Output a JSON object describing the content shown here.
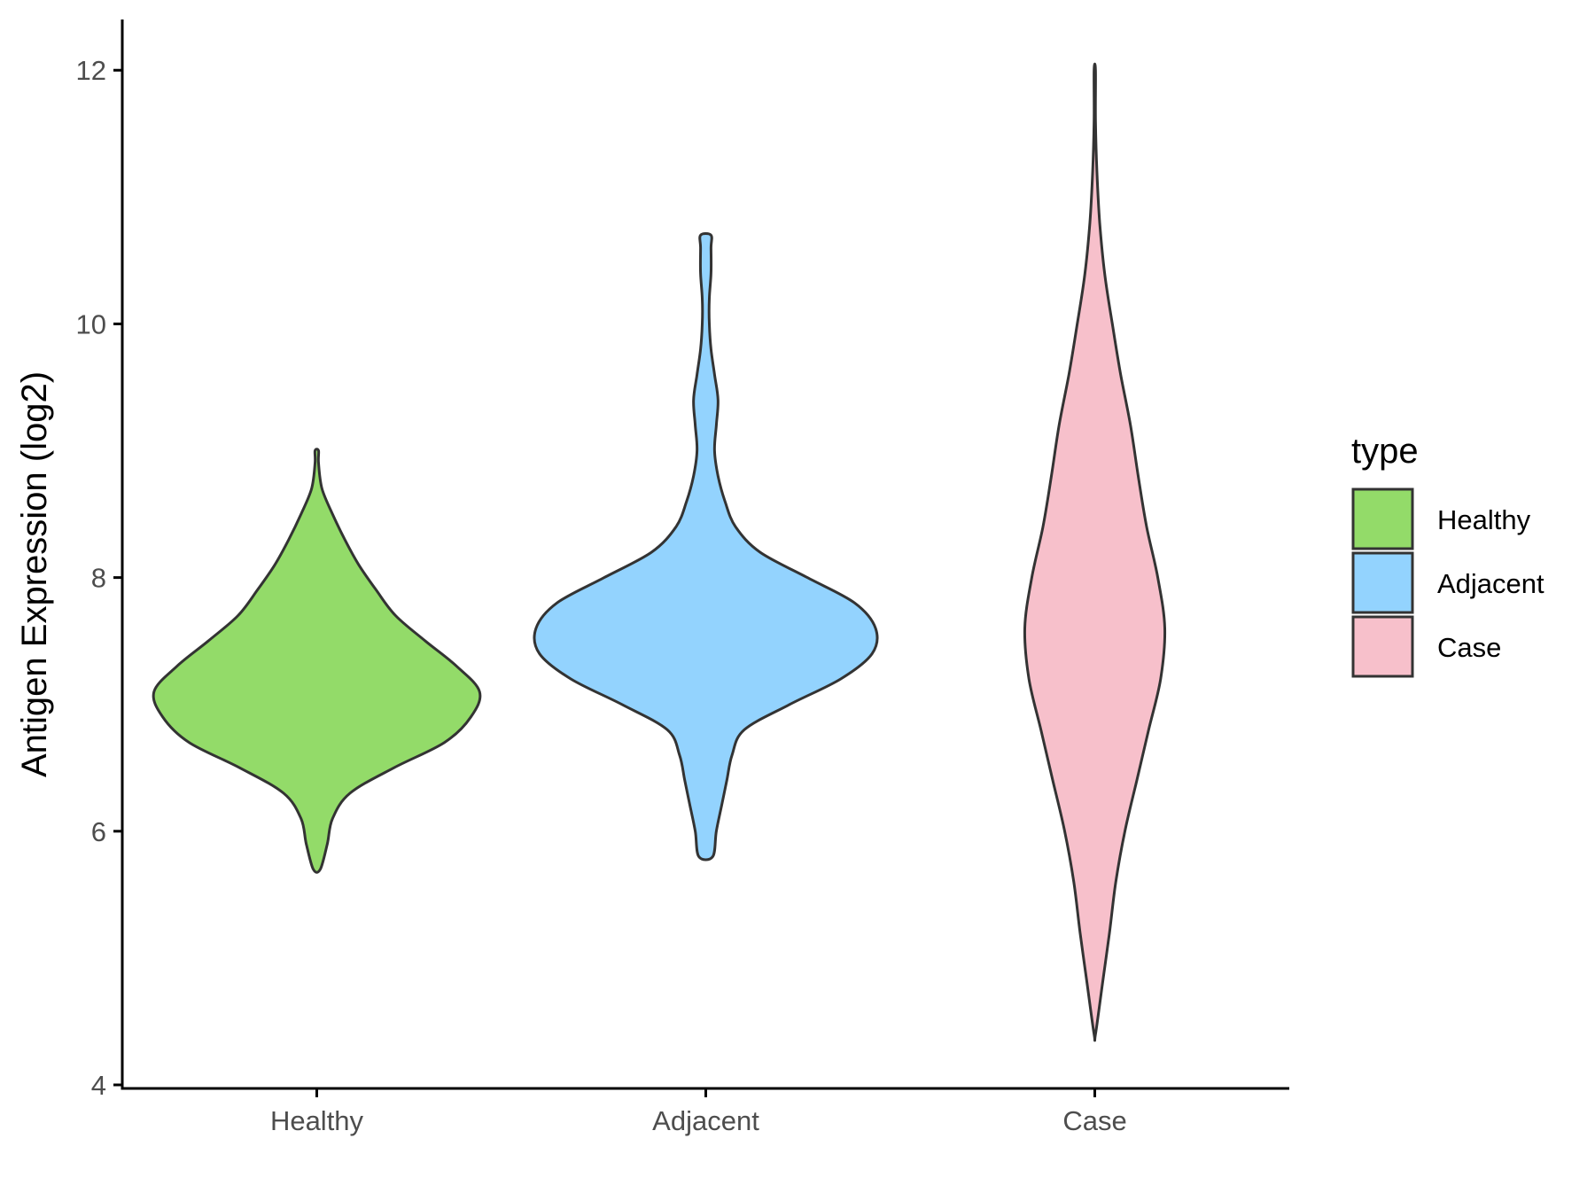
{
  "chart_data": {
    "type": "violin",
    "title": "",
    "xlabel": "",
    "ylabel": "Antigen Expression (log2)",
    "ylim": [
      4,
      12.4
    ],
    "yticks": [
      4,
      6,
      8,
      10,
      12
    ],
    "categories": [
      "Healthy",
      "Adjacent",
      "Case"
    ],
    "grid": false,
    "legend": {
      "title": "type",
      "position": "right",
      "entries": [
        "Healthy",
        "Adjacent",
        "Case"
      ]
    },
    "colors": {
      "Healthy": "#93db69",
      "Adjacent": "#93d3fe",
      "Case": "#f7c0cb",
      "outline": "#333333",
      "axis": "#000000"
    },
    "series": [
      {
        "category": "Healthy",
        "min": 5.7,
        "max": 9.0,
        "max_halfwidth_frac": 0.45,
        "profile": [
          [
            5.7,
            0.02
          ],
          [
            5.9,
            0.06
          ],
          [
            6.1,
            0.09
          ],
          [
            6.3,
            0.19
          ],
          [
            6.5,
            0.44
          ],
          [
            6.7,
            0.73
          ],
          [
            6.9,
            0.88
          ],
          [
            7.1,
            0.93
          ],
          [
            7.3,
            0.8
          ],
          [
            7.5,
            0.62
          ],
          [
            7.7,
            0.45
          ],
          [
            7.9,
            0.34
          ],
          [
            8.1,
            0.24
          ],
          [
            8.3,
            0.16
          ],
          [
            8.5,
            0.09
          ],
          [
            8.7,
            0.03
          ],
          [
            8.9,
            0.01
          ],
          [
            9.0,
            0.01
          ]
        ]
      },
      {
        "category": "Adjacent",
        "min": 5.8,
        "max": 10.7,
        "max_halfwidth_frac": 0.45,
        "profile": [
          [
            5.8,
            0.04
          ],
          [
            6.0,
            0.06
          ],
          [
            6.2,
            0.09
          ],
          [
            6.4,
            0.12
          ],
          [
            6.6,
            0.15
          ],
          [
            6.8,
            0.22
          ],
          [
            7.0,
            0.48
          ],
          [
            7.2,
            0.77
          ],
          [
            7.4,
            0.95
          ],
          [
            7.6,
            0.97
          ],
          [
            7.8,
            0.85
          ],
          [
            8.0,
            0.58
          ],
          [
            8.2,
            0.31
          ],
          [
            8.4,
            0.17
          ],
          [
            8.6,
            0.11
          ],
          [
            8.8,
            0.07
          ],
          [
            9.0,
            0.05
          ],
          [
            9.2,
            0.06
          ],
          [
            9.4,
            0.07
          ],
          [
            9.6,
            0.05
          ],
          [
            9.8,
            0.03
          ],
          [
            10.0,
            0.02
          ],
          [
            10.2,
            0.02
          ],
          [
            10.4,
            0.03
          ],
          [
            10.6,
            0.03
          ],
          [
            10.7,
            0.03
          ]
        ]
      },
      {
        "category": "Case",
        "min": 4.4,
        "max": 12.0,
        "max_halfwidth_frac": 0.18,
        "profile": [
          [
            4.4,
            0.01
          ],
          [
            4.8,
            0.11
          ],
          [
            5.2,
            0.21
          ],
          [
            5.6,
            0.3
          ],
          [
            6.0,
            0.43
          ],
          [
            6.4,
            0.6
          ],
          [
            6.8,
            0.77
          ],
          [
            7.2,
            0.94
          ],
          [
            7.6,
            1.0
          ],
          [
            8.0,
            0.9
          ],
          [
            8.4,
            0.74
          ],
          [
            8.8,
            0.62
          ],
          [
            9.2,
            0.51
          ],
          [
            9.6,
            0.37
          ],
          [
            10.0,
            0.25
          ],
          [
            10.4,
            0.14
          ],
          [
            10.8,
            0.07
          ],
          [
            11.2,
            0.03
          ],
          [
            11.6,
            0.01
          ],
          [
            12.0,
            0.01
          ]
        ]
      }
    ]
  }
}
